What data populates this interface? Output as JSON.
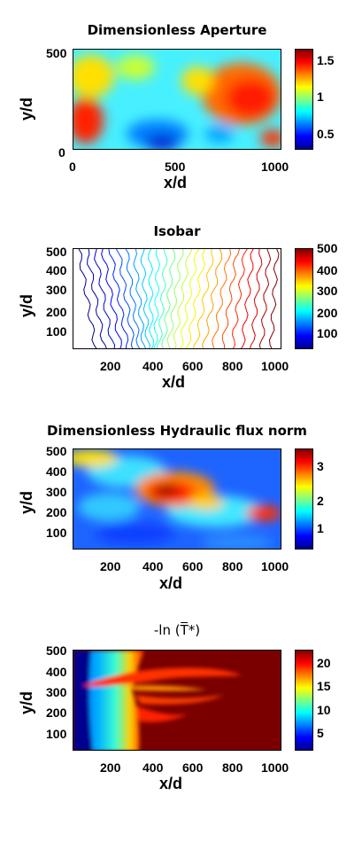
{
  "chart_data": [
    {
      "type": "heatmap",
      "title": "Dimensionless Aperture",
      "xlabel": "x/d",
      "ylabel": "y/d",
      "xlim": [
        0,
        1024
      ],
      "ylim": [
        0,
        512
      ],
      "x_ticks": [
        "0",
        "500",
        "1000"
      ],
      "y_ticks": [
        "0",
        "500"
      ],
      "colorbar_ticks": [
        "0.5",
        "1",
        "1.5"
      ],
      "colormap": "jet"
    },
    {
      "type": "line",
      "title": "Isobar",
      "xlabel": "x/d",
      "ylabel": "y/d",
      "xlim": [
        0,
        1024
      ],
      "ylim": [
        0,
        512
      ],
      "x_ticks": [
        "200",
        "400",
        "600",
        "800",
        "1000"
      ],
      "y_ticks": [
        "100",
        "200",
        "300",
        "400",
        "500"
      ],
      "colorbar_ticks": [
        "100",
        "200",
        "300",
        "400",
        "500"
      ],
      "colormap": "jet"
    },
    {
      "type": "heatmap",
      "title": "Dimensionless Hydraulic flux norm",
      "xlabel": "x/d",
      "ylabel": "y/d",
      "xlim": [
        0,
        1024
      ],
      "ylim": [
        0,
        512
      ],
      "x_ticks": [
        "200",
        "400",
        "600",
        "800",
        "1000"
      ],
      "y_ticks": [
        "100",
        "200",
        "300",
        "400",
        "500"
      ],
      "colorbar_ticks": [
        "1",
        "2",
        "3"
      ],
      "colormap": "jet"
    },
    {
      "type": "heatmap",
      "title": "-ln (T̅*)",
      "xlabel": "x/d",
      "ylabel": "y/d",
      "xlim": [
        0,
        1024
      ],
      "ylim": [
        0,
        512
      ],
      "x_ticks": [
        "200",
        "400",
        "600",
        "800",
        "1000"
      ],
      "y_ticks": [
        "100",
        "200",
        "300",
        "400",
        "500"
      ],
      "colorbar_ticks": [
        "5",
        "10",
        "15",
        "20"
      ],
      "colormap": "jet"
    }
  ]
}
